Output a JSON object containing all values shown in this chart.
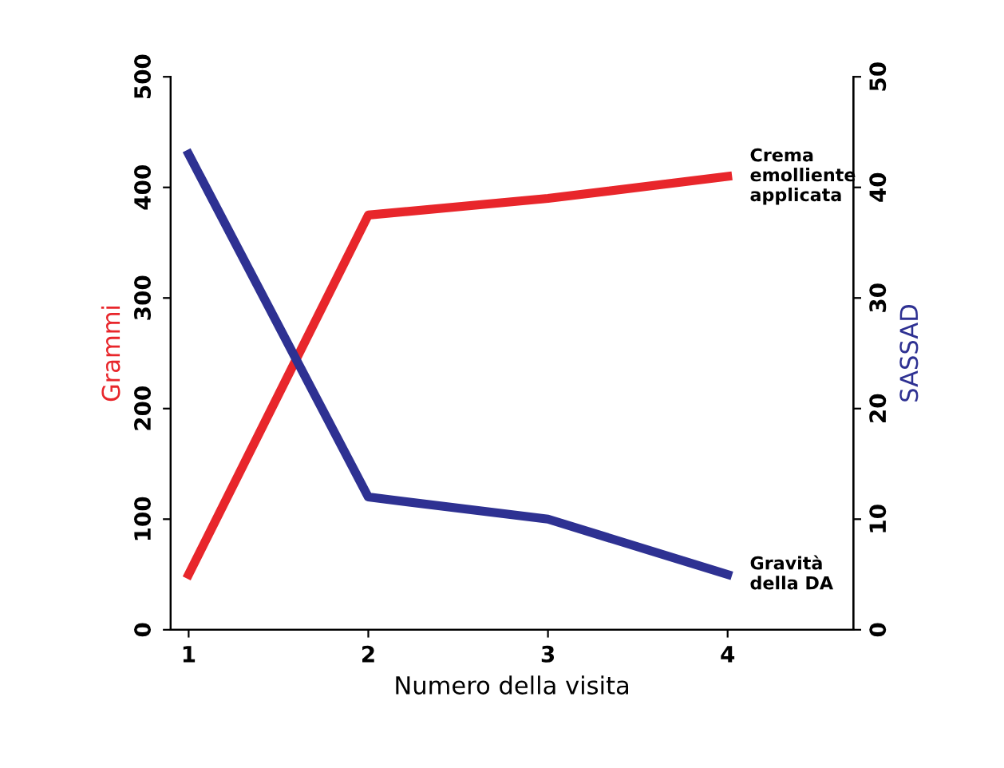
{
  "chart_data": {
    "type": "line",
    "xlabel": "Numero della visita",
    "ylabel": "Grammi",
    "y2label": "SASSAD",
    "categories": [
      "1",
      "2",
      "3",
      "4"
    ],
    "series": [
      {
        "name": "Crema\nemolliente\napplicata",
        "color": "#e8262b",
        "values": [
          50,
          375,
          390,
          410
        ]
      },
      {
        "name": "Gravità\ndella DA",
        "color": "#2e3192",
        "values": [
          43,
          12,
          10,
          5
        ],
        "axis": "y2"
      }
    ],
    "ylim": [
      0,
      500
    ],
    "yticks": [
      0,
      100,
      200,
      300,
      400,
      500
    ],
    "y2lim": [
      0,
      50
    ],
    "y2ticks": [
      0,
      10,
      20,
      30,
      40,
      50
    ],
    "legend": false,
    "grid": false,
    "marker": "none",
    "line_style": "solid"
  }
}
